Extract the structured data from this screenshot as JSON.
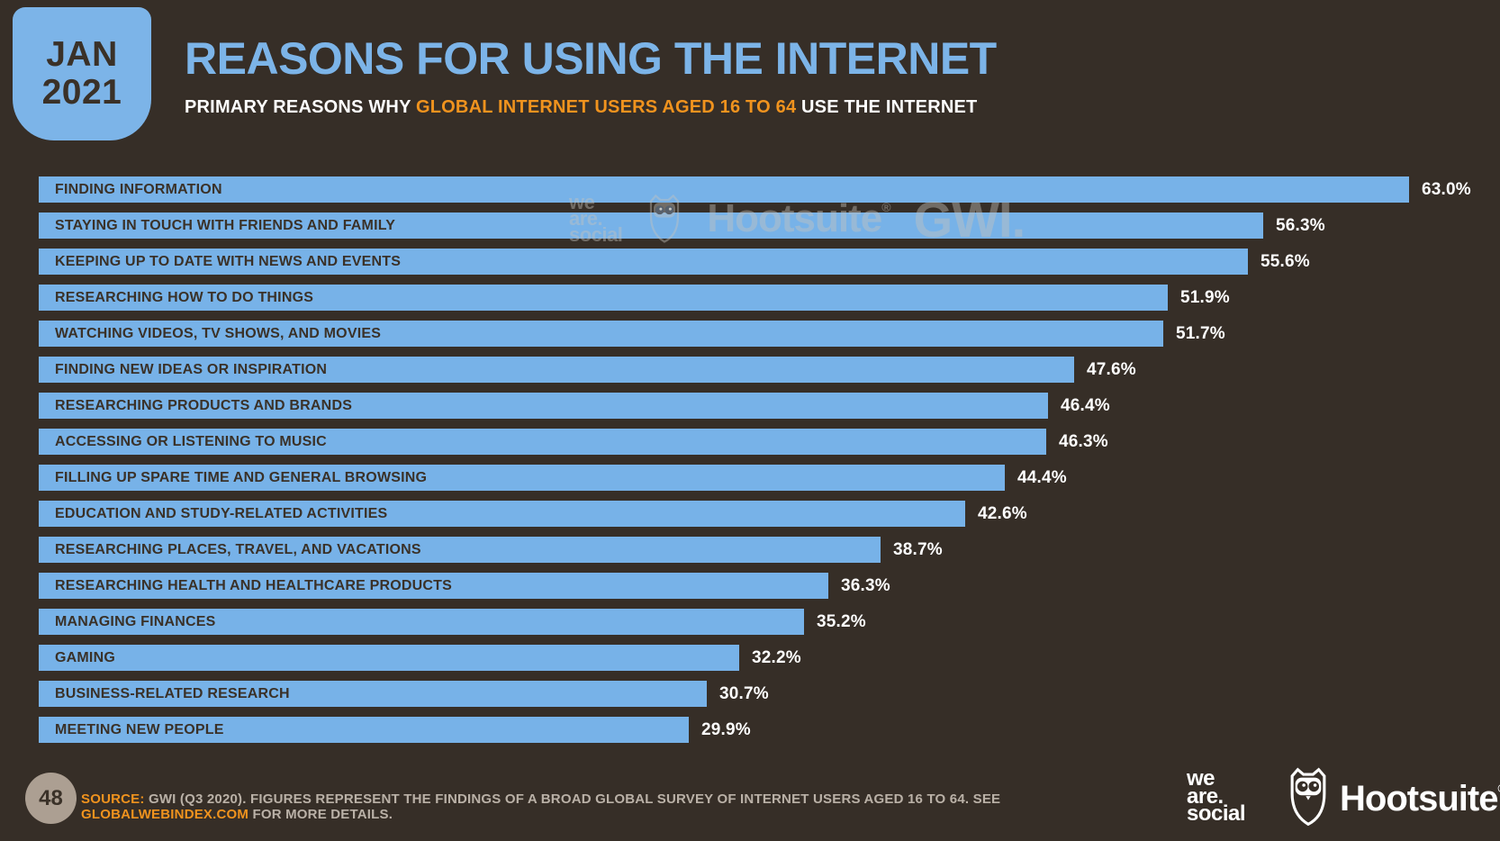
{
  "header": {
    "badge_line1": "JAN",
    "badge_line2": "2021",
    "title": "REASONS FOR USING THE INTERNET",
    "subtitle_prefix": "PRIMARY REASONS WHY ",
    "subtitle_highlight": "GLOBAL INTERNET USERS AGED 16 TO 64",
    "subtitle_suffix": " USE THE INTERNET"
  },
  "chart_data": {
    "type": "bar",
    "orientation": "horizontal",
    "title": "REASONS FOR USING THE INTERNET",
    "subtitle": "PRIMARY REASONS WHY GLOBAL INTERNET USERS AGED 16 TO 64 USE THE INTERNET",
    "xlabel": "",
    "ylabel": "",
    "xlim": [
      0,
      65
    ],
    "grid": false,
    "legend": false,
    "unit": "%",
    "bar_color": "#77B2E8",
    "categories": [
      "FINDING INFORMATION",
      "STAYING IN TOUCH WITH FRIENDS AND FAMILY",
      "KEEPING UP TO DATE WITH NEWS AND EVENTS",
      "RESEARCHING HOW TO DO THINGS",
      "WATCHING VIDEOS, TV SHOWS, AND MOVIES",
      "FINDING NEW IDEAS OR INSPIRATION",
      "RESEARCHING PRODUCTS AND BRANDS",
      "ACCESSING OR LISTENING TO MUSIC",
      "FILLING UP SPARE TIME AND GENERAL BROWSING",
      "EDUCATION AND STUDY-RELATED ACTIVITIES",
      "RESEARCHING PLACES, TRAVEL, AND VACATIONS",
      "RESEARCHING HEALTH AND HEALTHCARE PRODUCTS",
      "MANAGING FINANCES",
      "GAMING",
      "BUSINESS-RELATED RESEARCH",
      "MEETING NEW PEOPLE"
    ],
    "values": [
      63.0,
      56.3,
      55.6,
      51.9,
      51.7,
      47.6,
      46.4,
      46.3,
      44.4,
      42.6,
      38.7,
      36.3,
      35.2,
      32.2,
      30.7,
      29.9
    ],
    "value_labels": [
      "63.0%",
      "56.3%",
      "55.6%",
      "51.9%",
      "51.7%",
      "47.6%",
      "46.4%",
      "46.3%",
      "44.4%",
      "42.6%",
      "38.7%",
      "36.3%",
      "35.2%",
      "32.2%",
      "30.7%",
      "29.9%"
    ]
  },
  "watermark": {
    "we_are_social_line1": "we",
    "we_are_social_line2": "are.",
    "we_are_social_line3": "social",
    "hootsuite": "Hootsuite",
    "reg": "®",
    "gwi": "GWI."
  },
  "footer": {
    "page_number": "48",
    "source_label": "SOURCE:",
    "source_text_1": " GWI (Q3 2020). FIGURES REPRESENT THE FINDINGS OF A BROAD GLOBAL SURVEY OF INTERNET USERS AGED 16 TO 64. SEE ",
    "source_link": "GLOBALWEBINDEX.COM",
    "source_text_2": " FOR MORE DETAILS.",
    "ws_line1": "we",
    "ws_line2": "are.",
    "ws_line3": "social",
    "hootsuite": "Hootsuite",
    "reg": "®"
  },
  "colors": {
    "background": "#362E27",
    "bar_blue": "#77B2E8",
    "title_blue": "#7CB4E8",
    "accent_orange": "#F0931E",
    "dark_text": "#3A3128",
    "footer_text": "#BAB1A7",
    "page_number_bg": "#AC9F92"
  }
}
